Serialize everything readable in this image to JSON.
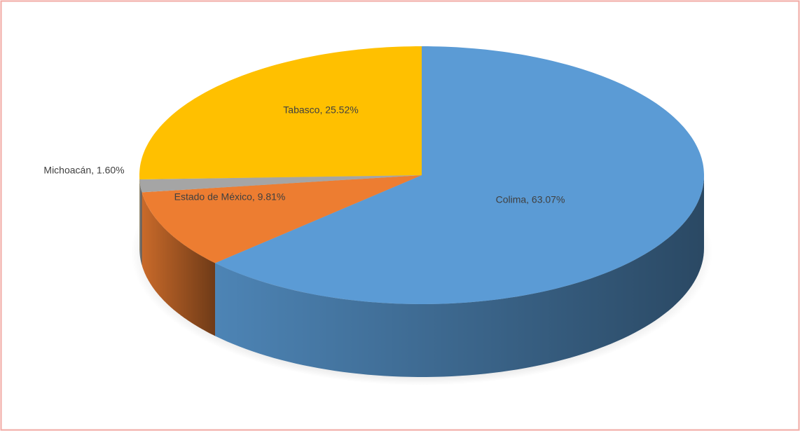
{
  "chart_data": {
    "type": "pie",
    "values": [
      63.07,
      9.81,
      1.6,
      25.52
    ],
    "value_labels": [
      "Colima, 63.07%",
      "Estado de México, 9.81%",
      "Michoacán, 1.60%",
      "Tabasco, 25.52%"
    ],
    "colors": [
      "#5b9bd5",
      "#ed7d31",
      "#a5a5a5",
      "#ffc000"
    ],
    "start": "top",
    "direction": "clockwise",
    "three_d": true
  }
}
